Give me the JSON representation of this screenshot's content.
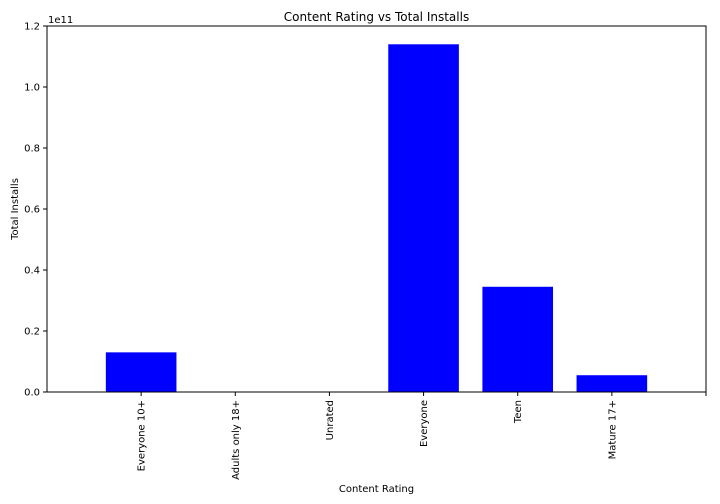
{
  "chart_data": {
    "type": "bar",
    "title": "Content Rating vs Total Installs",
    "xlabel": "Content Rating",
    "ylabel": "Total Installs",
    "offset_text": "1e11",
    "categories": [
      "Everyone 10+",
      "Adults only 18+",
      "Unrated",
      "Everyone",
      "Teen",
      "Mature 17+"
    ],
    "values": [
      0.13,
      0.0,
      0.0,
      1.14,
      0.345,
      0.055
    ],
    "value_scale": "1e11",
    "ylim": [
      0,
      1.2
    ],
    "yticks": [
      "0.0",
      "0.2",
      "0.4",
      "0.6",
      "0.8",
      "1.0",
      "1.2"
    ],
    "grid": false,
    "legend": "none",
    "bar_color": "#0000ff"
  }
}
